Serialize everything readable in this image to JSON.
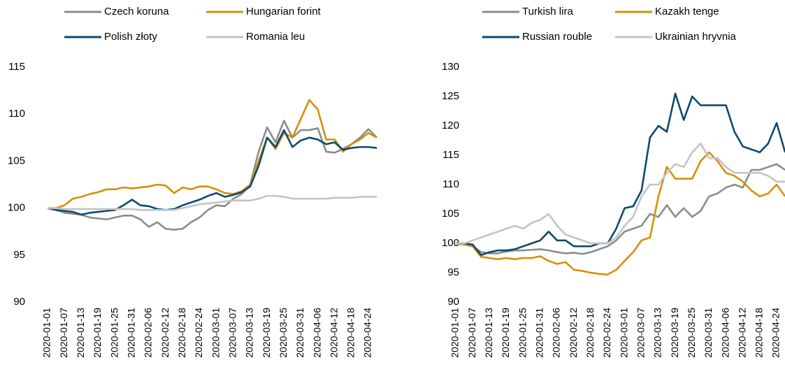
{
  "chart_data": [
    {
      "type": "line",
      "categories": [
        "2020-01-01",
        null,
        "2020-01-07",
        null,
        "2020-01-13",
        null,
        "2020-01-19",
        null,
        "2020-01-25",
        null,
        "2020-01-31",
        null,
        "2020-02-06",
        null,
        "2020-02-12",
        null,
        "2020-02-18",
        null,
        "2020-02-24",
        null,
        "2020-03-01",
        null,
        "2020-03-07",
        null,
        "2020-03-13",
        null,
        "2020-03-19",
        null,
        "2020-03-25",
        null,
        "2020-03-31",
        null,
        "2020-04-06",
        null,
        "2020-04-12",
        null,
        "2020-04-18",
        null,
        "2020-04-24",
        null
      ],
      "ylim": [
        90,
        115
      ],
      "yticks": [
        90,
        95,
        100,
        105,
        110,
        115
      ],
      "series": [
        {
          "name": "Czech koruna",
          "color": "#8c8c8c",
          "values": [
            100,
            99.8,
            99.5,
            99.4,
            99.3,
            99.0,
            98.9,
            98.8,
            99.0,
            99.2,
            99.2,
            98.8,
            98.0,
            98.5,
            97.8,
            97.7,
            97.8,
            98.5,
            99.0,
            99.8,
            100.3,
            100.2,
            101.0,
            101.5,
            102.5,
            106.0,
            108.6,
            107.0,
            109.3,
            107.5,
            108.3,
            108.3,
            108.5,
            106.0,
            105.9,
            106.3,
            106.8,
            107.5,
            108.4,
            107.5
          ]
        },
        {
          "name": "Hungarian forint",
          "color": "#d4900a",
          "values": [
            100,
            100,
            100.3,
            101.0,
            101.2,
            101.5,
            101.7,
            102.0,
            102.0,
            102.2,
            102.1,
            102.2,
            102.3,
            102.5,
            102.4,
            101.6,
            102.2,
            102.0,
            102.3,
            102.3,
            102.0,
            101.6,
            101.5,
            101.8,
            102.5,
            105.0,
            107.5,
            106.3,
            108.0,
            107.5,
            109.5,
            111.5,
            110.5,
            107.3,
            107.3,
            106.0,
            106.8,
            107.3,
            108.0,
            107.5
          ]
        },
        {
          "name": "Polish złoty",
          "color": "#0d4a6e",
          "values": [
            100,
            99.8,
            99.7,
            99.6,
            99.3,
            99.5,
            99.6,
            99.7,
            99.8,
            100.3,
            100.9,
            100.3,
            100.2,
            99.9,
            99.8,
            99.9,
            100.3,
            100.6,
            100.9,
            101.3,
            101.6,
            101.2,
            101.4,
            101.7,
            102.3,
            104.5,
            107.5,
            106.5,
            108.3,
            106.5,
            107.2,
            107.5,
            107.3,
            106.8,
            107.0,
            106.2,
            106.4,
            106.5,
            106.5,
            106.4
          ]
        },
        {
          "name": "Romania leu",
          "color": "#c4c4c4",
          "values": [
            100,
            100,
            99.9,
            99.9,
            99.9,
            99.9,
            99.9,
            99.9,
            99.9,
            99.9,
            99.9,
            99.8,
            99.8,
            99.8,
            99.8,
            99.8,
            100.0,
            100.2,
            100.4,
            100.5,
            100.6,
            100.7,
            100.8,
            100.8,
            100.8,
            101.0,
            101.3,
            101.3,
            101.2,
            101.0,
            101.0,
            101.0,
            101.0,
            101.0,
            101.1,
            101.1,
            101.1,
            101.2,
            101.2,
            101.2
          ]
        }
      ]
    },
    {
      "type": "line",
      "categories": [
        "2020-01-01",
        null,
        "2020-01-07",
        null,
        "2020-01-13",
        null,
        "2020-01-19",
        null,
        "2020-01-25",
        null,
        "2020-01-31",
        null,
        "2020-02-06",
        null,
        "2020-02-12",
        null,
        "2020-02-18",
        null,
        "2020-02-24",
        null,
        "2020-03-01",
        null,
        "2020-03-07",
        null,
        "2020-03-13",
        null,
        "2020-03-19",
        null,
        "2020-03-25",
        null,
        "2020-03-31",
        null,
        "2020-04-06",
        null,
        "2020-04-12",
        null,
        "2020-04-18",
        null,
        "2020-04-24",
        null
      ],
      "ylim": [
        90,
        130
      ],
      "yticks": [
        90,
        95,
        100,
        105,
        110,
        115,
        120,
        125,
        130
      ],
      "series": [
        {
          "name": "Turkish lira",
          "color": "#8c8c8c",
          "values": [
            100,
            99.8,
            99.5,
            98.5,
            98.3,
            98.3,
            98.6,
            98.8,
            98.8,
            98.9,
            99.0,
            98.8,
            98.5,
            98.3,
            98.4,
            98.2,
            98.5,
            99.0,
            99.5,
            100.5,
            102.0,
            102.5,
            103.0,
            105.0,
            104.5,
            106.5,
            104.5,
            106.0,
            104.5,
            105.5,
            108.0,
            108.5,
            109.5,
            110.0,
            109.5,
            112.5,
            112.5,
            113.0,
            113.5,
            112.5
          ]
        },
        {
          "name": "Kazakh tenge",
          "color": "#d4900a",
          "values": [
            100,
            99.8,
            99.5,
            97.7,
            97.5,
            97.3,
            97.5,
            97.3,
            97.5,
            97.5,
            97.8,
            97.0,
            96.5,
            96.8,
            95.5,
            95.3,
            95.0,
            94.8,
            94.7,
            95.5,
            97.0,
            98.5,
            100.5,
            101.0,
            108.0,
            113.0,
            111.0,
            111.0,
            111.0,
            114.0,
            115.5,
            114.0,
            112.0,
            111.5,
            110.5,
            109.0,
            108.0,
            108.5,
            110.0,
            108.0
          ]
        },
        {
          "name": "Russian rouble",
          "color": "#0d4a6e",
          "values": [
            100,
            100,
            99.8,
            98.0,
            98.5,
            98.8,
            98.8,
            99.0,
            99.5,
            100.0,
            100.5,
            102.0,
            100.5,
            100.5,
            99.5,
            99.5,
            99.5,
            100.0,
            100.0,
            102.5,
            106.0,
            106.3,
            109.0,
            118.0,
            120.0,
            119.0,
            125.5,
            121.0,
            125.0,
            123.5,
            123.5,
            123.5,
            123.5,
            119.0,
            116.5,
            116.0,
            115.5,
            117.0,
            120.5,
            115.5
          ]
        },
        {
          "name": "Ukrainian hryvnia",
          "color": "#c4c4c4",
          "values": [
            100,
            100,
            100.5,
            101.0,
            101.5,
            102.0,
            102.5,
            103.0,
            102.5,
            103.5,
            104.0,
            105.0,
            103.0,
            101.5,
            101.0,
            100.5,
            100.0,
            100.0,
            100.0,
            101.0,
            103.0,
            104.5,
            108.0,
            110.0,
            110.0,
            112.0,
            113.5,
            113.0,
            115.5,
            117.0,
            114.5,
            114.5,
            113.0,
            112.0,
            112.0,
            112.0,
            112.0,
            111.5,
            110.5,
            110.5
          ]
        }
      ]
    }
  ]
}
